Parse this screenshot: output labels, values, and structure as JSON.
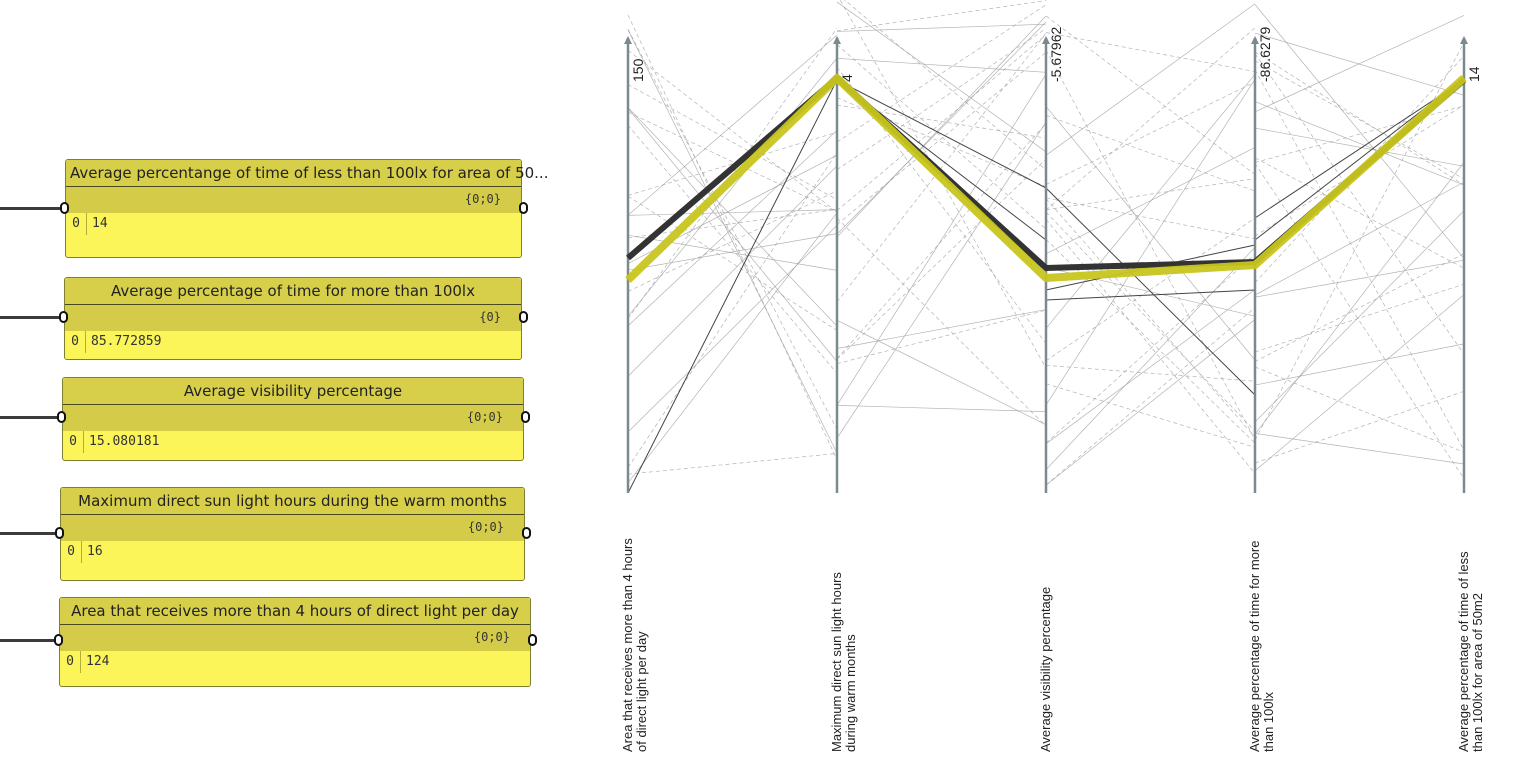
{
  "panels": [
    {
      "title": "Average percentange of time of less than 100lx for area of 50...",
      "path": "{0;0}",
      "index": "0",
      "value": "14"
    },
    {
      "title": "Average percentage of time for more than 100lx",
      "path": "{0}",
      "index": "0",
      "value": "85.772859"
    },
    {
      "title": "Average visibility percentage",
      "path": "{0;0}",
      "index": "0",
      "value": "15.080181"
    },
    {
      "title": "Maximum direct sun light hours during the warm months",
      "path": "{0;0}",
      "index": "0",
      "value": "16"
    },
    {
      "title": "Area that receives more than 4 hours of direct light per day",
      "path": "{0;0}",
      "index": "0",
      "value": "124"
    }
  ],
  "chart_data": {
    "type": "parallel-coordinates",
    "axes": [
      {
        "label_lines": [
          "Area that receives more than 4 hours",
          "of direct light per day"
        ],
        "tick": "150"
      },
      {
        "label_lines": [
          "Maximum direct sun light hours",
          "during warm months"
        ],
        "tick": "4"
      },
      {
        "label_lines": [
          "Average visibility percentage"
        ],
        "tick": "-5.67962"
      },
      {
        "label_lines": [
          "Average percentage of time for more",
          "than 100lx"
        ],
        "tick": "-86.6279"
      },
      {
        "label_lines": [
          "Average percentage of time of less",
          "than 100lx for area of 50m2"
        ],
        "tick": "14"
      }
    ],
    "colors": {
      "axis": "#7a8a8f",
      "selected": "#c8c51f",
      "selected_shadow": "#333333",
      "background_lines": "#9a9a9a"
    }
  }
}
